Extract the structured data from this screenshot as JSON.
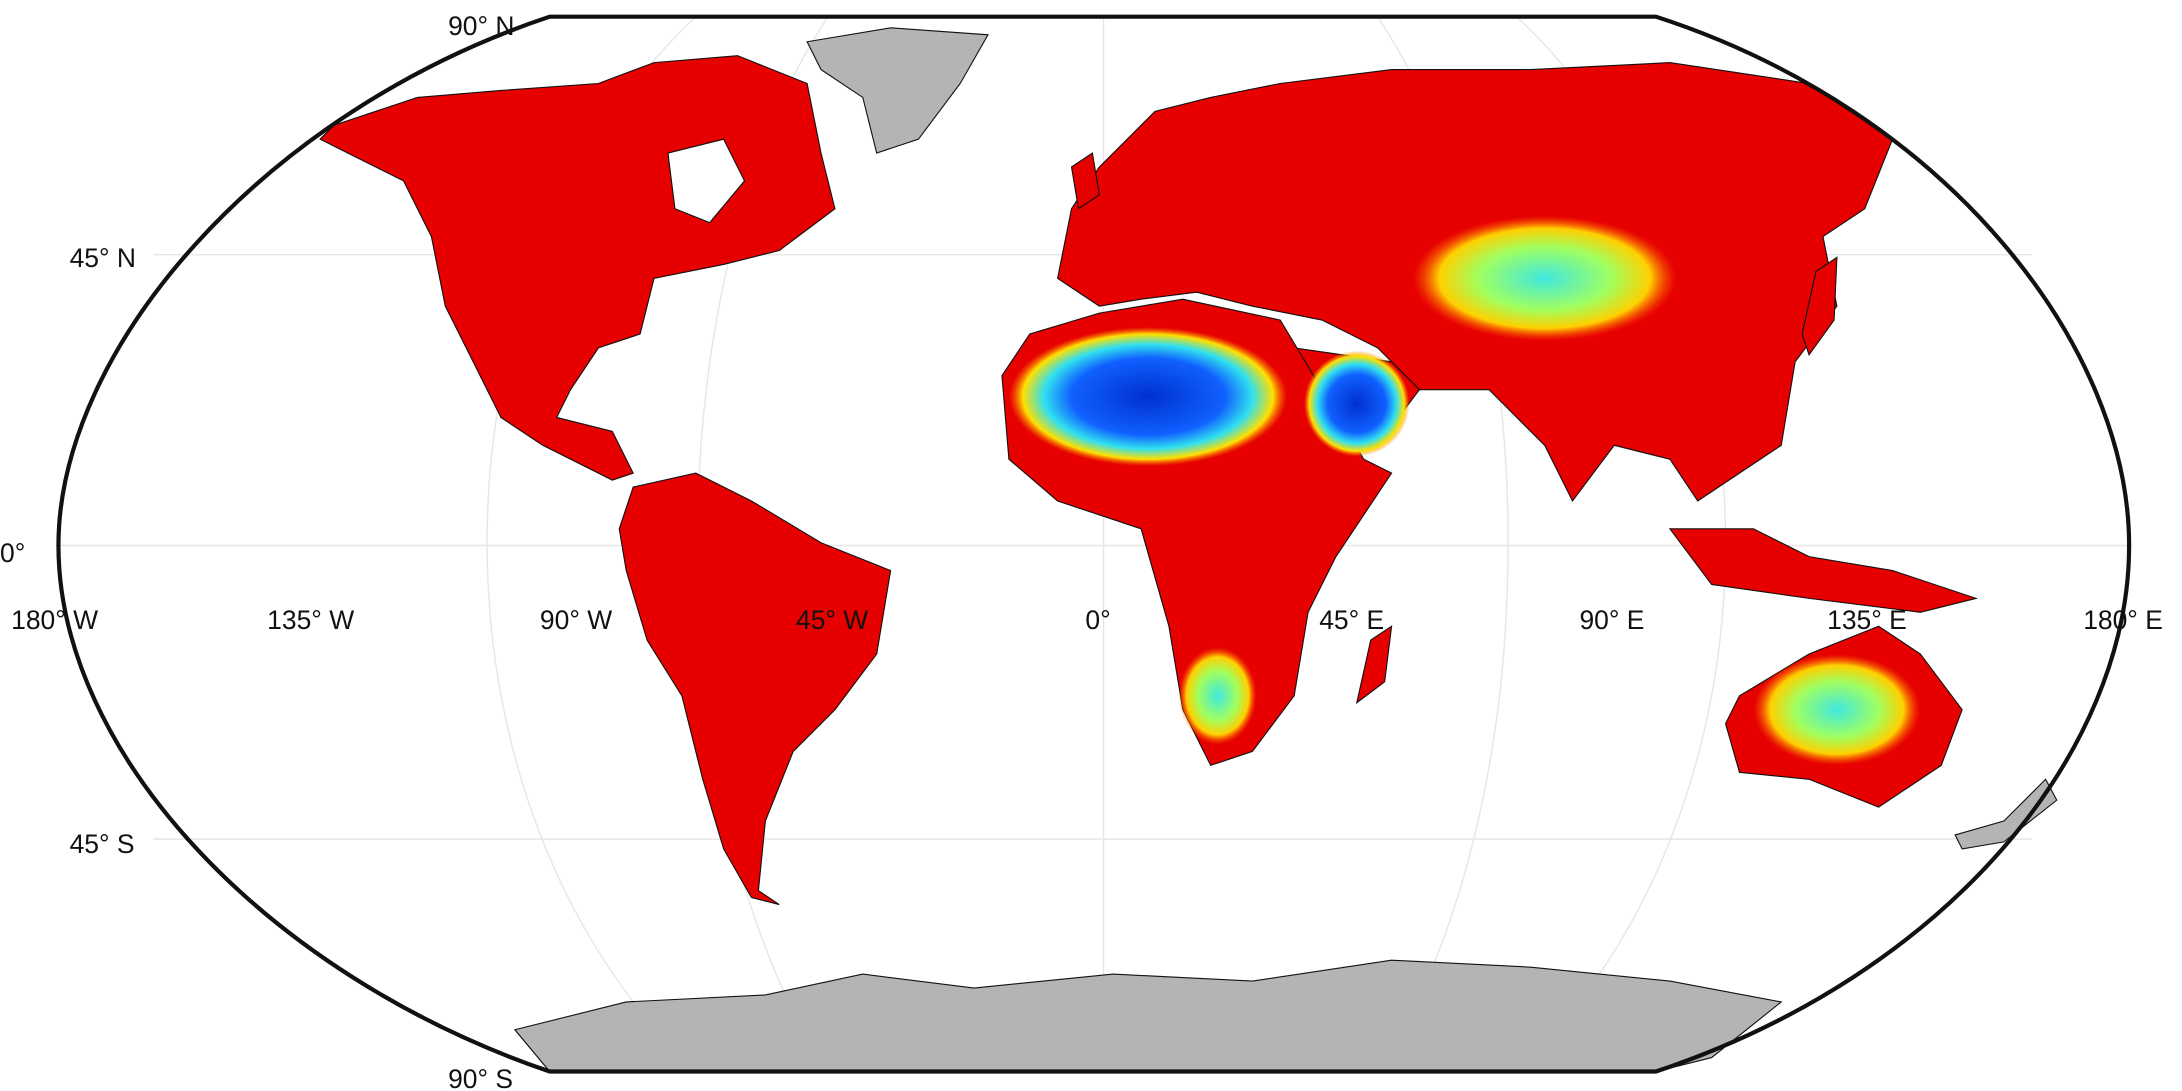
{
  "map": {
    "latitude_labels": [
      "90° N",
      "45° N",
      "0°",
      "45° S",
      "90° S"
    ],
    "longitude_labels": [
      "180° W",
      "135° W",
      "90° W",
      "45° W",
      "0°",
      "45° E",
      "90° E",
      "135° E",
      "180° E"
    ]
  }
}
